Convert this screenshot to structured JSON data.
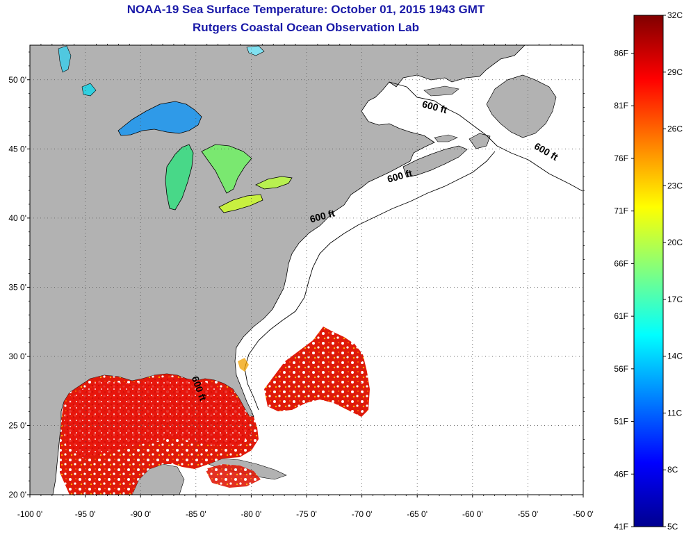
{
  "title": {
    "line1": "NOAA-19 Sea Surface Temperature:  October 01, 2015 1943 GMT",
    "line2": "Rutgers Coastal Ocean Observation Lab"
  },
  "map": {
    "lon_range": [
      -100,
      -50
    ],
    "lat_range": [
      20,
      52.5
    ],
    "lat_ticks": [
      {
        "value": 50,
        "label": "50 0'"
      },
      {
        "value": 45,
        "label": "45 0'"
      },
      {
        "value": 40,
        "label": "40 0'"
      },
      {
        "value": 35,
        "label": "35 0'"
      },
      {
        "value": 30,
        "label": "30 0'"
      },
      {
        "value": 25,
        "label": "25 0'"
      },
      {
        "value": 20,
        "label": "20 0'"
      }
    ],
    "lon_ticks": [
      {
        "value": -100,
        "label": "-100 0'"
      },
      {
        "value": -95,
        "label": "-95 0'"
      },
      {
        "value": -90,
        "label": "-90 0'"
      },
      {
        "value": -85,
        "label": "-85 0'"
      },
      {
        "value": -80,
        "label": "-80 0'"
      },
      {
        "value": -75,
        "label": "-75 0'"
      },
      {
        "value": -70,
        "label": "-70 0'"
      },
      {
        "value": -65,
        "label": "-65 0'"
      },
      {
        "value": -60,
        "label": "-60 0'"
      },
      {
        "value": -55,
        "label": "-55 0'"
      },
      {
        "value": -50,
        "label": "-50 0'"
      }
    ],
    "contour_labels": [
      {
        "text": "600 ft",
        "lon": -63.5,
        "lat": 47.8,
        "rotation": 15
      },
      {
        "text": "600 ft",
        "lon": -53.5,
        "lat": 44.6,
        "rotation": 30
      },
      {
        "text": "600 ft",
        "lon": -66.5,
        "lat": 42.8,
        "rotation": -15
      },
      {
        "text": "600 ft",
        "lon": -73.5,
        "lat": 39.9,
        "rotation": -15
      },
      {
        "text": "600 ft",
        "lon": -85.0,
        "lat": 27.6,
        "rotation": 70
      }
    ],
    "colors": {
      "land": "#b2b2b2",
      "water_no_data": "#ffffff",
      "grid": "#555555"
    }
  },
  "colorbar": {
    "min_c": 5,
    "max_c": 32,
    "celsius_ticks": [
      {
        "value": 32,
        "label": "32C"
      },
      {
        "value": 29,
        "label": "29C"
      },
      {
        "value": 26,
        "label": "26C"
      },
      {
        "value": 23,
        "label": "23C"
      },
      {
        "value": 20,
        "label": "20C"
      },
      {
        "value": 17,
        "label": "17C"
      },
      {
        "value": 14,
        "label": "14C"
      },
      {
        "value": 11,
        "label": "11C"
      },
      {
        "value": 8,
        "label": "8C"
      },
      {
        "value": 5,
        "label": "5C"
      }
    ],
    "fahrenheit_ticks": [
      {
        "value": 86,
        "label": "86F"
      },
      {
        "value": 81,
        "label": "81F"
      },
      {
        "value": 76,
        "label": "76F"
      },
      {
        "value": 71,
        "label": "71F"
      },
      {
        "value": 66,
        "label": "66F"
      },
      {
        "value": 61,
        "label": "61F"
      },
      {
        "value": 56,
        "label": "56F"
      },
      {
        "value": 51,
        "label": "51F"
      },
      {
        "value": 46,
        "label": "46F"
      },
      {
        "value": 41,
        "label": "41F"
      }
    ],
    "colormap": [
      "#00008f",
      "#0000ff",
      "#0080ff",
      "#00ffff",
      "#80ff80",
      "#ffff00",
      "#ff8000",
      "#ff0000",
      "#800000"
    ]
  }
}
